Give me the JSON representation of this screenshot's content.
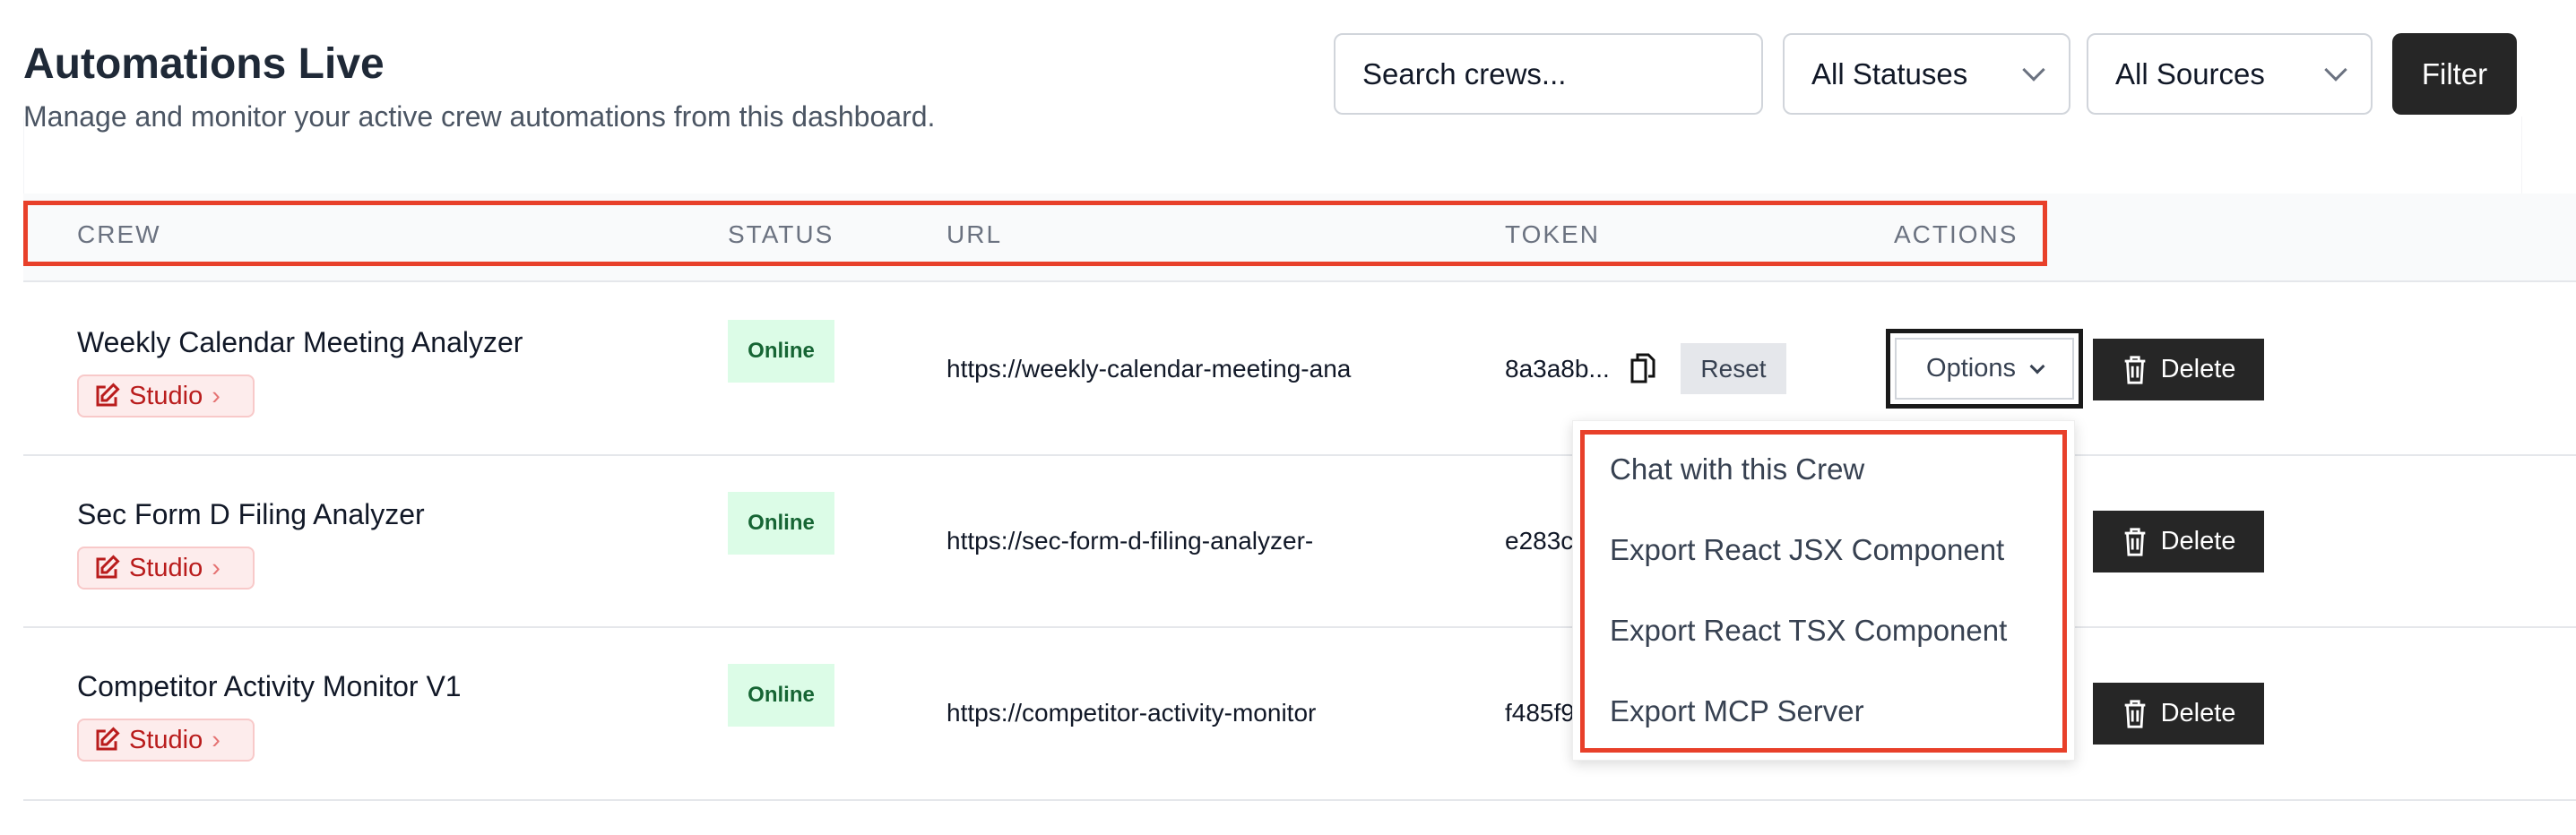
{
  "header": {
    "title": "Automations Live",
    "subtitle": "Manage and monitor your active crew automations from this dashboard."
  },
  "toolbar": {
    "search_placeholder": "Search crews...",
    "status_select": "All Statuses",
    "source_select": "All Sources",
    "filter_label": "Filter"
  },
  "table": {
    "columns": [
      "CREW",
      "STATUS",
      "URL",
      "TOKEN",
      "ACTIONS"
    ],
    "rows": [
      {
        "name": "Weekly Calendar Meeting Analyzer",
        "studio": "Studio",
        "status": "Online",
        "url": "https://weekly-calendar-meeting-ana",
        "token": "8a3a8b...",
        "reset": "Reset",
        "options": "Options",
        "delete": "Delete"
      },
      {
        "name": "Sec Form D Filing Analyzer",
        "studio": "Studio",
        "status": "Online",
        "url": "https://sec-form-d-filing-analyzer-",
        "token": "e283c",
        "delete": "Delete"
      },
      {
        "name": "Competitor Activity Monitor V1",
        "studio": "Studio",
        "status": "Online",
        "url": "https://competitor-activity-monitor",
        "token": "f485f9",
        "delete": "Delete"
      }
    ]
  },
  "options_menu": {
    "items": [
      "Chat with this Crew",
      "Export React JSX Component",
      "Export React TSX Component",
      "Export MCP Server"
    ]
  },
  "colors": {
    "highlight": "#e8402a",
    "online_bg": "#dcfce7",
    "online_text": "#166534",
    "studio_text": "#b91c1c",
    "dark_button": "#262626"
  }
}
